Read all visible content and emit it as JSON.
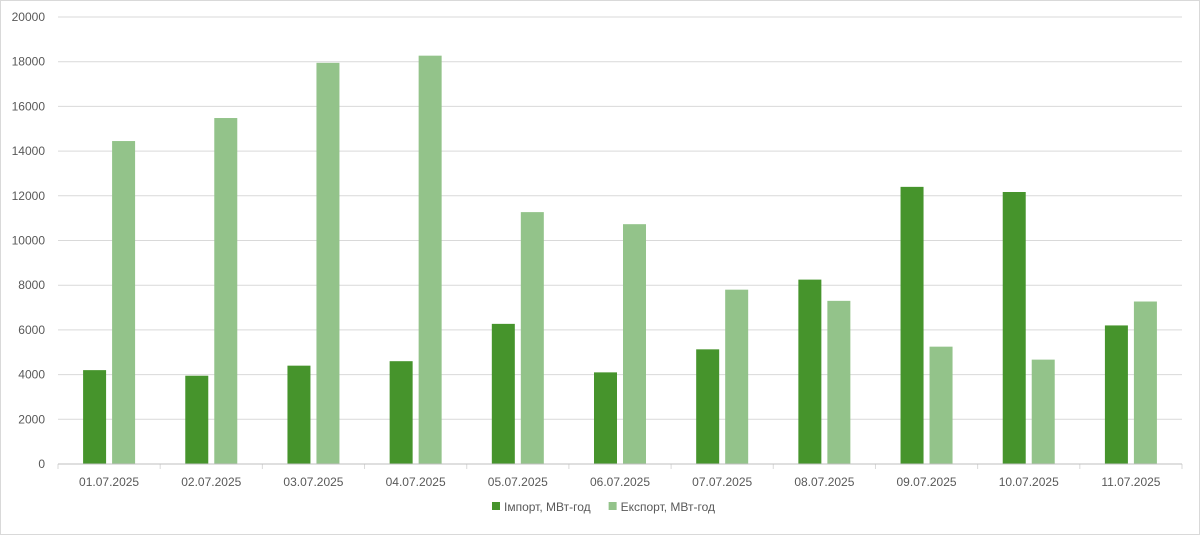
{
  "chart_data": {
    "type": "bar",
    "categories": [
      "01.07.2025",
      "02.07.2025",
      "03.07.2025",
      "04.07.2025",
      "05.07.2025",
      "06.07.2025",
      "07.07.2025",
      "08.07.2025",
      "09.07.2025",
      "10.07.2025",
      "11.07.2025"
    ],
    "series": [
      {
        "name": "Імпорт, МВт-год",
        "color": "#46942c",
        "values": [
          4200,
          3950,
          4400,
          4600,
          6270,
          4100,
          5130,
          8250,
          12400,
          12170,
          6200
        ]
      },
      {
        "name": "Експорт, МВт-год",
        "color": "#93c38a",
        "values": [
          14450,
          15480,
          17950,
          18270,
          11270,
          10730,
          7800,
          7300,
          5250,
          4670,
          7270
        ]
      }
    ],
    "title": "",
    "xlabel": "",
    "ylabel": "",
    "ylim": [
      0,
      20000
    ],
    "yticks": [
      0,
      2000,
      4000,
      6000,
      8000,
      10000,
      12000,
      14000,
      16000,
      18000,
      20000
    ],
    "grid": true,
    "legend_position": "bottom"
  }
}
